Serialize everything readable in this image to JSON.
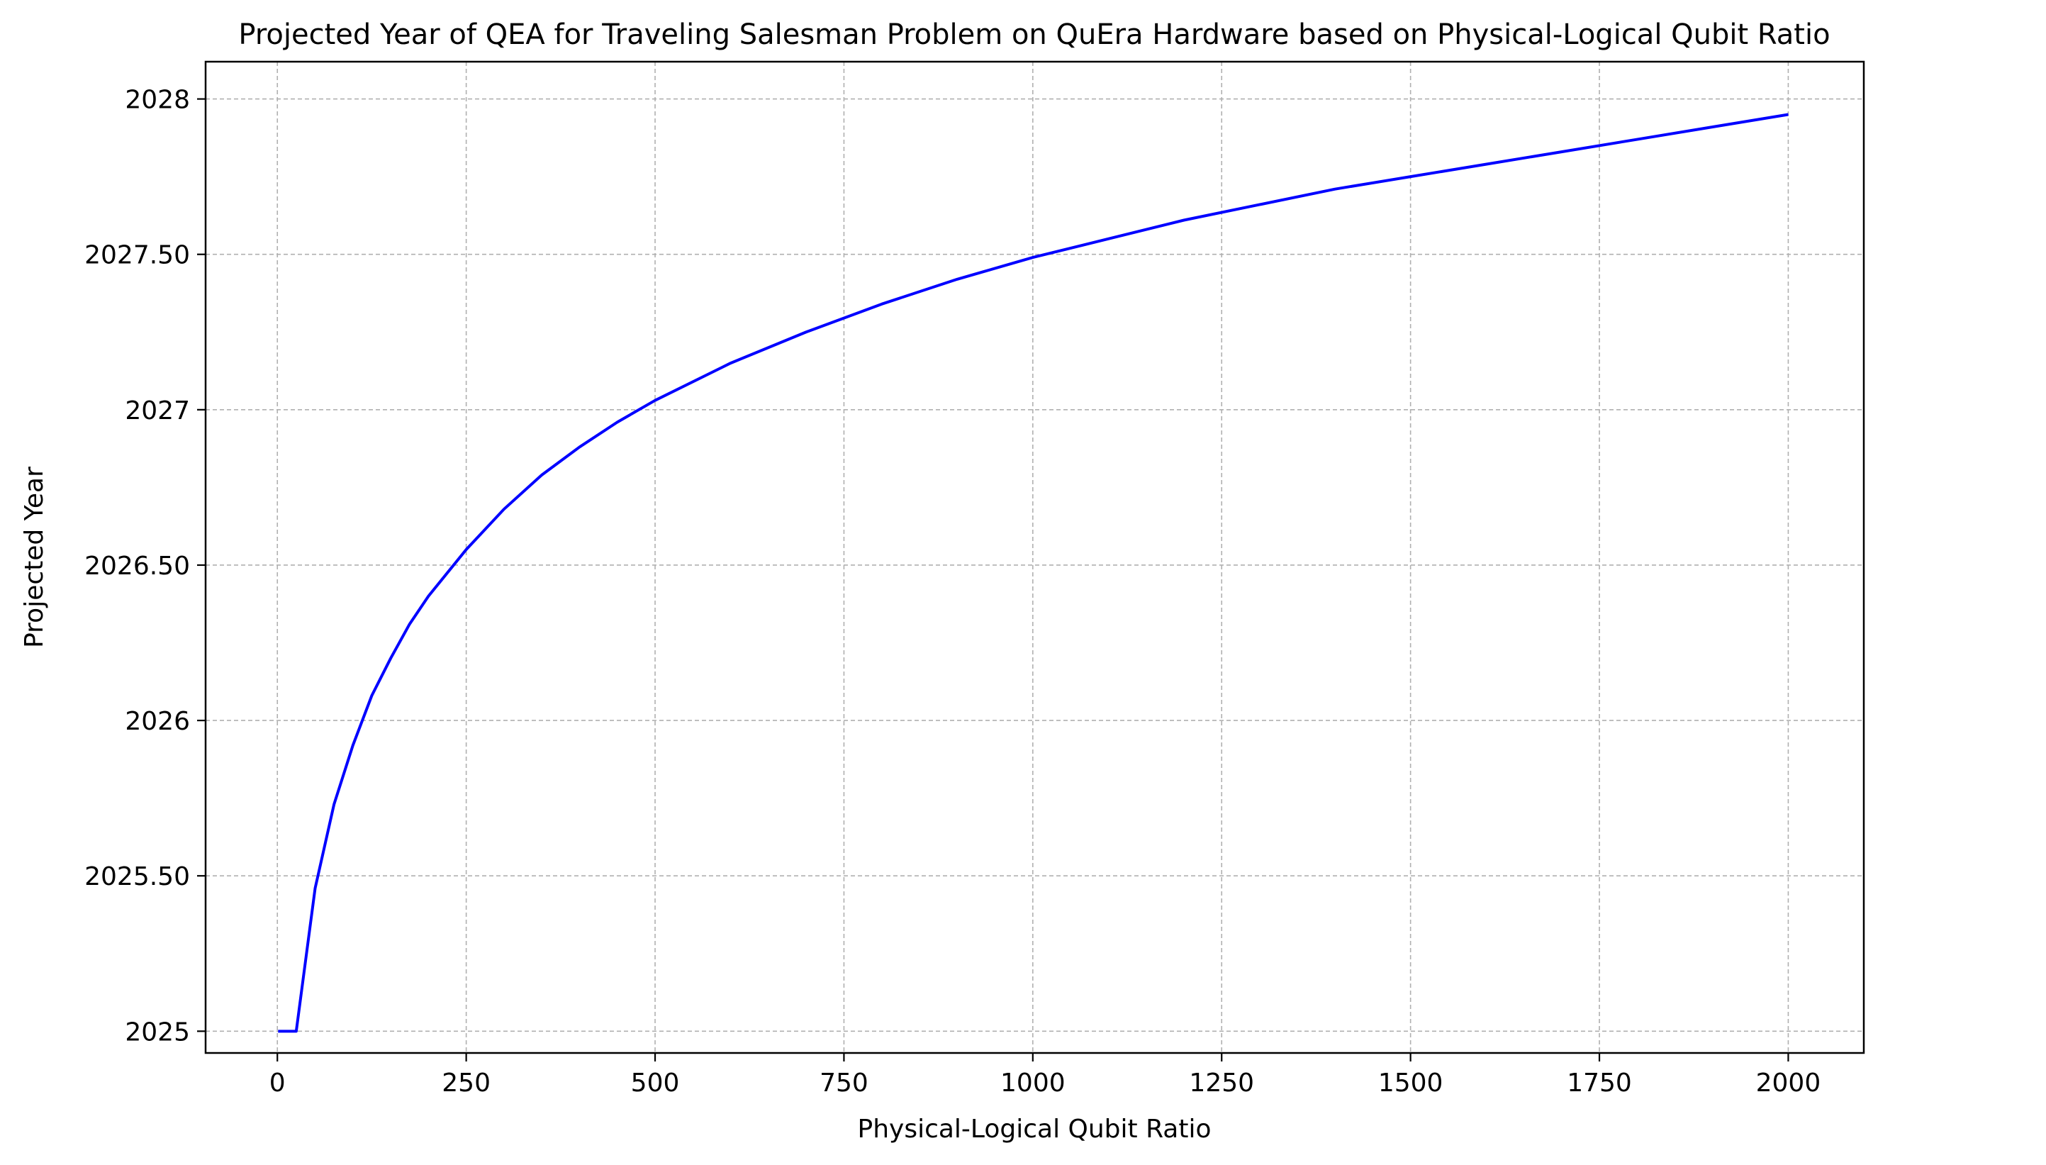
{
  "chart_data": {
    "type": "line",
    "title": "Projected Year of QEA for Traveling Salesman Problem on QuEra Hardware based on Physical-Logical Qubit Ratio",
    "xlabel": "Physical-Logical Qubit Ratio",
    "ylabel": "Projected Year",
    "xlim": [
      -95,
      2100
    ],
    "ylim": [
      2024.93,
      2028.12
    ],
    "xticks": [
      0,
      250,
      500,
      750,
      1000,
      1250,
      1500,
      1750,
      2000
    ],
    "xtick_labels": [
      "0",
      "250",
      "500",
      "750",
      "1000",
      "1250",
      "1500",
      "1750",
      "2000"
    ],
    "yticks": [
      2025,
      2025.5,
      2026,
      2026.5,
      2027,
      2027.5,
      2028
    ],
    "ytick_labels": [
      "2025",
      "2025.50",
      "2026",
      "2026.50",
      "2027",
      "2027.50",
      "2028"
    ],
    "grid": true,
    "grid_style": "dashed",
    "series": [
      {
        "color": "#0000ff",
        "x": [
          1,
          25,
          50,
          75,
          100,
          125,
          150,
          175,
          200,
          250,
          300,
          350,
          400,
          450,
          500,
          600,
          700,
          800,
          900,
          1000,
          1100,
          1200,
          1300,
          1400,
          1500,
          1600,
          1700,
          1800,
          1900,
          2000
        ],
        "y": [
          2025.0,
          2025.0,
          2025.46,
          2025.73,
          2025.92,
          2026.08,
          2026.2,
          2026.31,
          2026.4,
          2026.55,
          2026.68,
          2026.79,
          2026.88,
          2026.96,
          2027.03,
          2027.15,
          2027.25,
          2027.34,
          2027.42,
          2027.49,
          2027.55,
          2027.61,
          2027.66,
          2027.71,
          2027.75,
          2027.79,
          2027.83,
          2027.87,
          2027.91,
          2027.95
        ]
      }
    ]
  }
}
